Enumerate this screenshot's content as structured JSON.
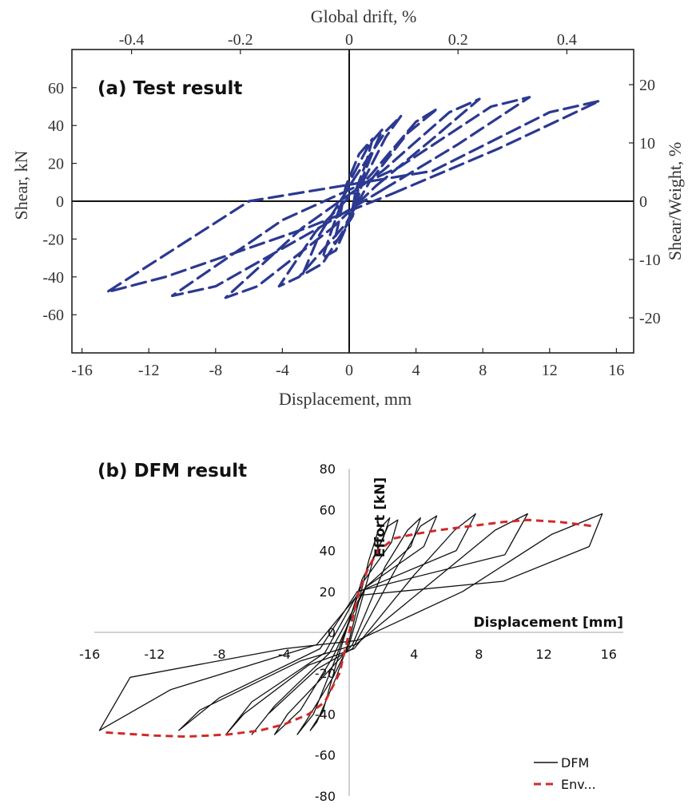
{
  "panels": [
    {
      "chart_data": {
        "type": "line",
        "title": "(a) Test result",
        "xlabel": "Displacement, mm",
        "ylabel": "Shear, kN",
        "x2label": "Global drift, %",
        "y2label": "Shear/Weight, %",
        "xlim": [
          -17,
          17
        ],
        "ylim": [
          -80,
          75
        ],
        "x_ticks": [
          "-16",
          "-12",
          "-8",
          "-4",
          "0",
          "4",
          "8",
          "12",
          "16"
        ],
        "y_ticks": [
          "-60",
          "-40",
          "-20",
          "0",
          "20",
          "40",
          "60"
        ],
        "x2_ticks": [
          "-0.4",
          "-0.2",
          "0",
          "0.2",
          "0.4"
        ],
        "y2_ticks": [
          "-20",
          "-10",
          "0",
          "10",
          "20"
        ],
        "line_style": "dashed",
        "series_color": "#2b3990",
        "series": [
          {
            "cycles": [
              {
                "x": [
                  0.4,
                  1.0,
                  1.4,
                  0.6,
                  -0.2,
                  -0.6,
                  -0.9,
                  -0.4,
                  0.2,
                  0.4
                ],
                "y": [
                  6,
                  20,
                  33,
                  25,
                  8,
                  -10,
                  -22,
                  -18,
                  -4,
                  6
                ]
              },
              {
                "x": [
                  0.6,
                  1.5,
                  2.0,
                  1.2,
                  0.0,
                  -1.0,
                  -1.6,
                  -0.8,
                  0.2,
                  0.6
                ],
                "y": [
                  8,
                  28,
                  38,
                  30,
                  10,
                  -14,
                  -30,
                  -26,
                  -6,
                  8
                ]
              },
              {
                "x": [
                  0.8,
                  2.2,
                  3.1,
                  2.2,
                  0.3,
                  -1.8,
                  -2.8,
                  -1.6,
                  0.2,
                  0.8
                ],
                "y": [
                  10,
                  34,
                  45,
                  37,
                  12,
                  -18,
                  -39,
                  -33,
                  -8,
                  10
                ]
              },
              {
                "x": [
                  1.2,
                  3.5,
                  5.3,
                  4.0,
                  1.3,
                  -2.0,
                  -4.2,
                  -3.0,
                  -0.2,
                  1.2
                ],
                "y": [
                  10,
                  36,
                  49,
                  42,
                  14,
                  -16,
                  -45,
                  -40,
                  -12,
                  10
                ]
              },
              {
                "x": [
                  1.6,
                  5.0,
                  7.8,
                  6.0,
                  2.0,
                  -2.8,
                  -7.4,
                  -5.5,
                  -1.0,
                  1.6
                ],
                "y": [
                  8,
                  33,
                  54,
                  47,
                  16,
                  -14,
                  -51,
                  -45,
                  -14,
                  8
                ]
              },
              {
                "x": [
                  2.0,
                  6.5,
                  10.8,
                  8.5,
                  3.0,
                  -4.0,
                  -10.6,
                  -8.0,
                  -1.8,
                  2.0
                ],
                "y": [
                  6,
                  30,
                  55,
                  50,
                  18,
                  -10,
                  -50,
                  -45,
                  -14,
                  6
                ]
              },
              {
                "x": [
                  2.6,
                  9.0,
                  15.0,
                  12.0,
                  5.0,
                  -6.0,
                  -14.5,
                  -11.0,
                  -2.5,
                  2.6
                ],
                "y": [
                  4,
                  28,
                  53,
                  47,
                  16,
                  0,
                  -48,
                  -40,
                  -14,
                  4
                ]
              }
            ]
          }
        ]
      }
    },
    {
      "chart_data": {
        "type": "line",
        "title": "(b) DFM result",
        "xlabel": "Displacement [mm]",
        "ylabel": "Effort [kN]",
        "xlim": [
          -16,
          16
        ],
        "ylim": [
          -80,
          80
        ],
        "x_ticks": [
          "-16",
          "-12",
          "-8",
          "-4",
          "0",
          "4",
          "8",
          "12",
          "16"
        ],
        "y_ticks": [
          "80",
          "60",
          "40",
          "20",
          "0",
          "-20",
          "-40",
          "-60",
          "-80"
        ],
        "legend": "bottom-right",
        "series": [
          {
            "name": "DFM",
            "color": "#111111",
            "cycles": [
              {
                "x": [
                  0.0,
                  1.2,
                  1.8,
                  2.5,
                  2.1,
                  0.8,
                  -0.6,
                  -1.6,
                  -2.4,
                  -2.0,
                  -0.8,
                  0.0
                ],
                "y": [
                  -4,
                  35,
                  50,
                  56,
                  46,
                  26,
                  -10,
                  -38,
                  -48,
                  -44,
                  -22,
                  -4
                ]
              },
              {
                "x": [
                  0.0,
                  1.5,
                  2.4,
                  3.0,
                  2.6,
                  0.8,
                  -0.8,
                  -2.2,
                  -3.2,
                  -2.7,
                  -1.0,
                  0.0
                ],
                "y": [
                  -6,
                  36,
                  52,
                  55,
                  44,
                  24,
                  -12,
                  -40,
                  -50,
                  -44,
                  -22,
                  -6
                ]
              },
              {
                "x": [
                  0.2,
                  2.2,
                  3.6,
                  4.4,
                  3.8,
                  1.0,
                  -1.0,
                  -3.0,
                  -4.6,
                  -3.8,
                  -1.4,
                  0.2
                ],
                "y": [
                  -6,
                  32,
                  50,
                  56,
                  42,
                  22,
                  -12,
                  -38,
                  -50,
                  -40,
                  -20,
                  -6
                ]
              },
              {
                "x": [
                  0.2,
                  2.8,
                  4.4,
                  5.4,
                  4.6,
                  1.0,
                  -1.2,
                  -4.6,
                  -6.0,
                  -5.0,
                  -2.0,
                  0.2
                ],
                "y": [
                  -8,
                  30,
                  52,
                  57,
                  42,
                  22,
                  -10,
                  -36,
                  -50,
                  -40,
                  -18,
                  -8
                ]
              },
              {
                "x": [
                  0.3,
                  4.0,
                  6.5,
                  7.8,
                  6.6,
                  0.6,
                  -1.5,
                  -6.0,
                  -7.6,
                  -6.5,
                  -2.5,
                  0.3
                ],
                "y": [
                  -8,
                  28,
                  50,
                  58,
                  40,
                  20,
                  -10,
                  -34,
                  -50,
                  -40,
                  -16,
                  -8
                ]
              },
              {
                "x": [
                  0.4,
                  5.0,
                  9.0,
                  11.0,
                  9.6,
                  0.5,
                  -1.8,
                  -8.0,
                  -10.5,
                  -9.2,
                  -3.0,
                  0.4
                ],
                "y": [
                  -6,
                  24,
                  50,
                  58,
                  38,
                  20,
                  -8,
                  -32,
                  -48,
                  -38,
                  -14,
                  -6
                ]
              },
              {
                "x": [
                  0.5,
                  7.0,
                  12.5,
                  15.6,
                  14.8,
                  9.5,
                  0.5,
                  -2.0,
                  -11.0,
                  -15.4,
                  -13.5,
                  -4.0,
                  0.5
                ],
                "y": [
                  -4,
                  20,
                  48,
                  58,
                  42,
                  25,
                  18,
                  -6,
                  -28,
                  -48,
                  -22,
                  -8,
                  -4
                ]
              }
            ]
          },
          {
            "name": "Env...",
            "color": "#d02a2a",
            "x": [
              -15.0,
              -12.0,
              -10.0,
              -7.5,
              -5.5,
              -4.0,
              -2.5,
              -1.5,
              -0.6,
              0.0,
              0.6,
              1.2,
              1.8,
              2.8,
              4.0,
              5.5,
              7.5,
              9.5,
              11.0,
              13.0,
              15.0
            ],
            "y": [
              -49,
              -50.5,
              -51,
              -50,
              -48,
              -45,
              -40,
              -34,
              -20,
              0,
              20,
              32,
              40,
              46,
              48,
              50,
              52,
              54,
              55,
              54,
              52
            ]
          }
        ]
      }
    }
  ]
}
